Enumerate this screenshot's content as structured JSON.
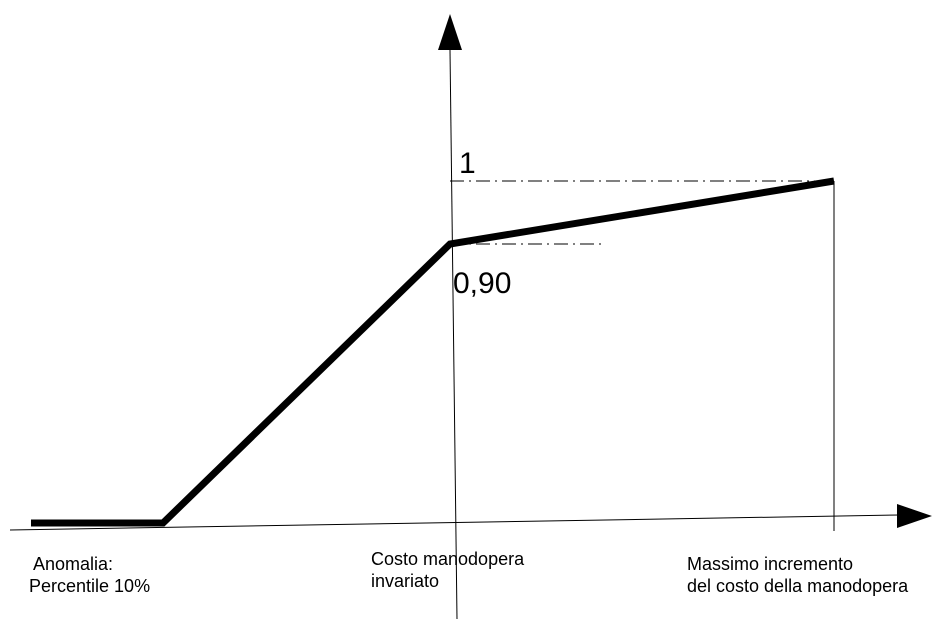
{
  "labels": {
    "y_top_value": "1",
    "y_knee_value": "0,90",
    "left": {
      "line1": "Anomalia:",
      "line2": "Percentile 10%"
    },
    "center": {
      "line1": "Costo manodopera",
      "line2": "invariato"
    },
    "right": {
      "line1": "Massimo incremento",
      "line2": "del costo della manodopera"
    }
  },
  "colors": {
    "stroke": "#000000",
    "background": "#ffffff"
  }
}
